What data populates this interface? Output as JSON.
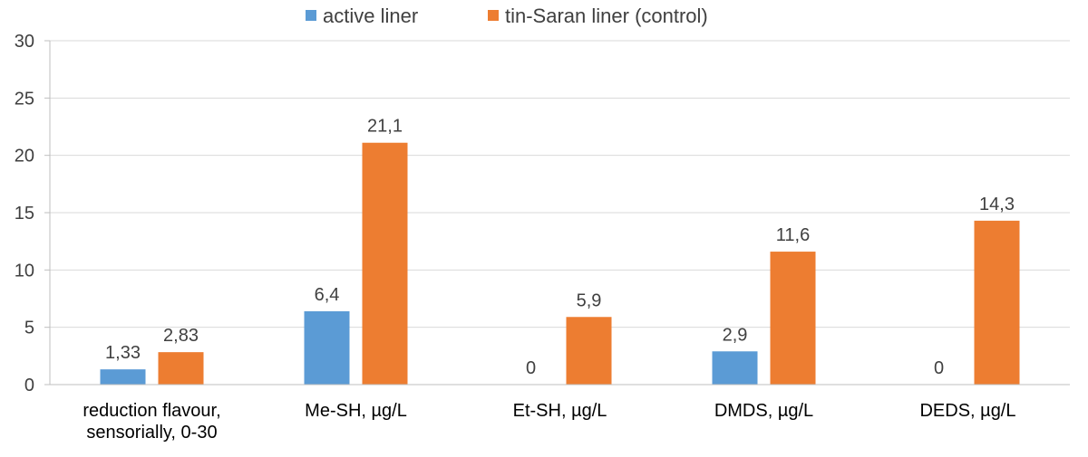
{
  "chart_data": {
    "type": "bar",
    "categories": [
      [
        "reduction flavour,",
        "sensorially, 0-30"
      ],
      [
        "Me-SH, µg/L"
      ],
      [
        "Et-SH, µg/L"
      ],
      [
        "DMDS, µg/L"
      ],
      [
        "DEDS, µg/L"
      ]
    ],
    "series": [
      {
        "name": "active liner",
        "color": "#5B9BD5",
        "values": [
          1.33,
          6.4,
          0,
          2.9,
          0
        ],
        "labels": [
          "1,33",
          "6,4",
          "0",
          "2,9",
          "0"
        ]
      },
      {
        "name": "tin-Saran liner (control)",
        "color": "#ED7D31",
        "values": [
          2.83,
          21.1,
          5.9,
          11.6,
          14.3
        ],
        "labels": [
          "2,83",
          "21,1",
          "5,9",
          "11,6",
          "14,3"
        ]
      }
    ],
    "ylim": [
      0,
      30
    ],
    "yticks": [
      0,
      5,
      10,
      15,
      20,
      25,
      30
    ],
    "grid": true,
    "legend_position": "top",
    "title": "",
    "xlabel": "",
    "ylabel": ""
  }
}
